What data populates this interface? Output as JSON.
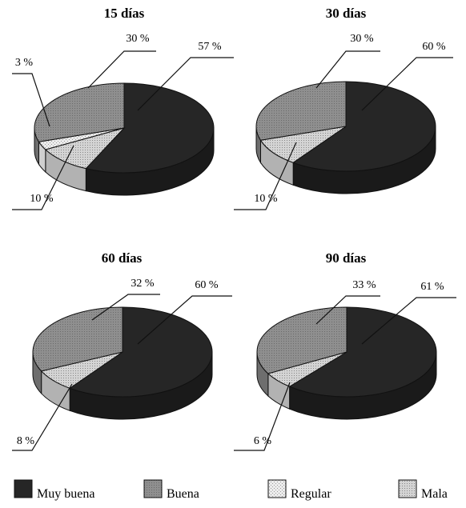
{
  "chart_data": [
    {
      "type": "pie",
      "title": "15 días",
      "slices": [
        {
          "label": "Muy buena",
          "value": 57,
          "text": "57 %"
        },
        {
          "label": "Buena",
          "value": 30,
          "text": "30 %"
        },
        {
          "label": "Regular",
          "value": 3,
          "text": "3 %"
        },
        {
          "label": "Mala",
          "value": 10,
          "text": "10 %"
        }
      ]
    },
    {
      "type": "pie",
      "title": "30 días",
      "slices": [
        {
          "label": "Muy buena",
          "value": 60,
          "text": "60 %"
        },
        {
          "label": "Buena",
          "value": 30,
          "text": "30 %"
        },
        {
          "label": "Regular",
          "value": 0,
          "text": ""
        },
        {
          "label": "Mala",
          "value": 10,
          "text": "10 %"
        }
      ]
    },
    {
      "type": "pie",
      "title": "60 días",
      "slices": [
        {
          "label": "Muy buena",
          "value": 60,
          "text": "60 %"
        },
        {
          "label": "Buena",
          "value": 32,
          "text": "32 %"
        },
        {
          "label": "Regular",
          "value": 0,
          "text": ""
        },
        {
          "label": "Mala",
          "value": 8,
          "text": "8 %"
        }
      ]
    },
    {
      "type": "pie",
      "title": "90 días",
      "slices": [
        {
          "label": "Muy buena",
          "value": 61,
          "text": "61 %"
        },
        {
          "label": "Buena",
          "value": 33,
          "text": "33 %"
        },
        {
          "label": "Regular",
          "value": 0,
          "text": ""
        },
        {
          "label": "Mala",
          "value": 6,
          "text": "6 %"
        }
      ]
    }
  ],
  "legend": [
    {
      "label": "Muy buena",
      "color": "#262626"
    },
    {
      "label": "Buena",
      "color": "#8c8c8c"
    },
    {
      "label": "Regular",
      "color": "#e2e2e2"
    },
    {
      "label": "Mala",
      "color": "#c6c6c6"
    }
  ]
}
